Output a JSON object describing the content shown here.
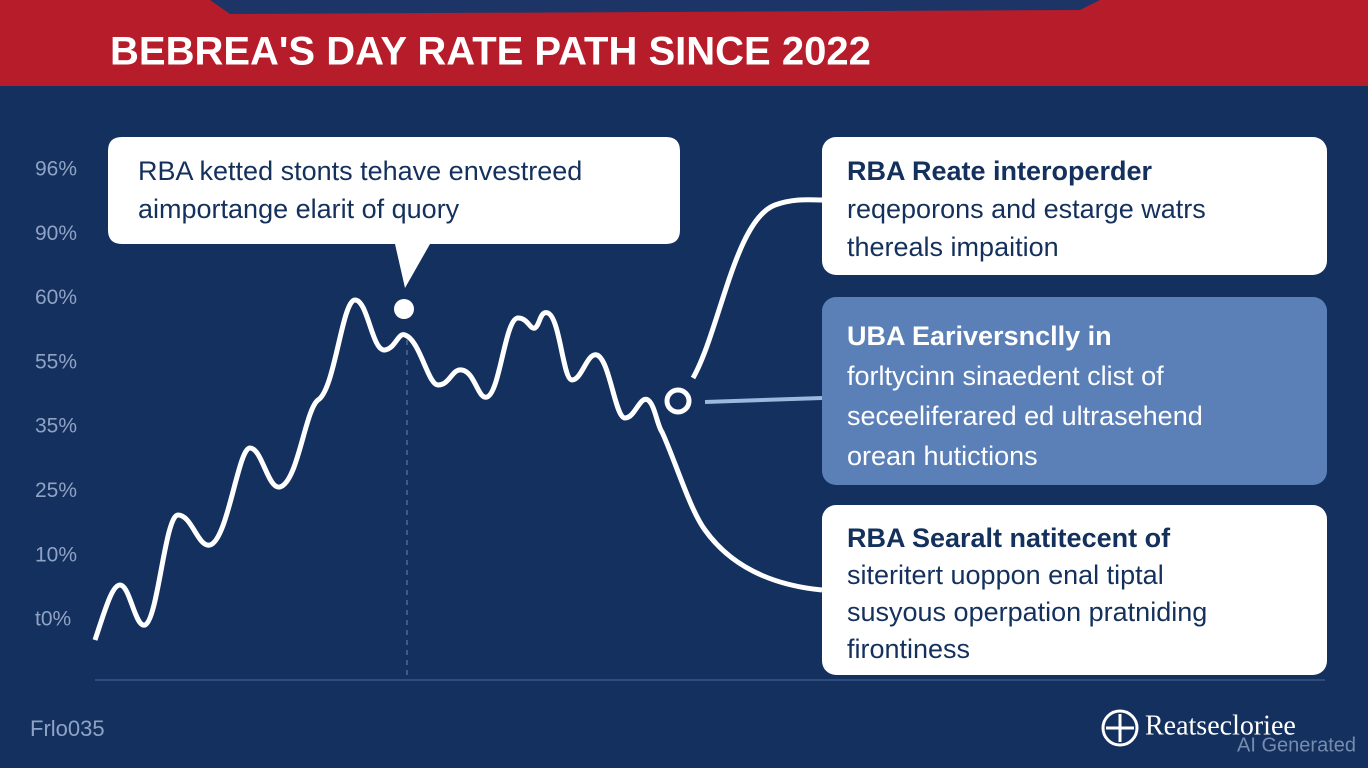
{
  "header": {
    "title": "BEBREA'S DAY RATE PATH SINCE 2022"
  },
  "axis": {
    "labels": [
      "96%",
      "90%",
      "60%",
      "55%",
      "35%",
      "25%",
      "10%",
      "t0%"
    ]
  },
  "callouts": [
    {
      "lines": [
        "RBA ketted stonts tehave envestreed",
        "aimportange elarit of quory"
      ]
    },
    {
      "lines": [
        "RBA Reate interoperder",
        "reqeporons and estarge watrs",
        "thereals impaition"
      ]
    },
    {
      "lines": [
        "UBA Eariversnclly in",
        "forltycinn sinaedent clist of",
        "seceeliferared ed ultrasehend",
        "orean hutictions"
      ]
    },
    {
      "lines": [
        "RBA Searalt natitecent of",
        "siteritert uoppon enal tiptal",
        "susyous operpation pratniding",
        "firontiness"
      ]
    }
  ],
  "footer": {
    "left": "Frlo035",
    "brand": "Reatsecloriee",
    "watermark": "AI Generated"
  }
}
